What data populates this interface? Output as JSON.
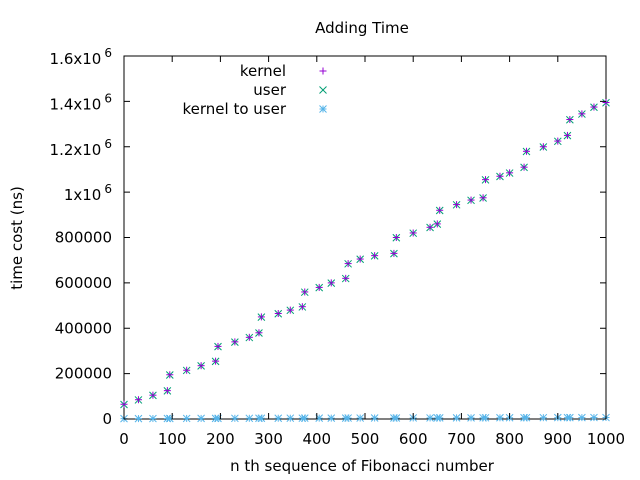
{
  "chart_data": {
    "type": "scatter",
    "title": "Adding Time",
    "xlabel": "n th sequence of Fibonacci number",
    "ylabel": "time cost (ns)",
    "xlim": [
      0,
      1000
    ],
    "ylim": [
      0,
      1600000
    ],
    "grid": false,
    "legend_position": "top-left",
    "x_ticks": [
      {
        "value": 0,
        "label": "0"
      },
      {
        "value": 100,
        "label": "100"
      },
      {
        "value": 200,
        "label": "200"
      },
      {
        "value": 300,
        "label": "300"
      },
      {
        "value": 400,
        "label": "400"
      },
      {
        "value": 500,
        "label": "500"
      },
      {
        "value": 600,
        "label": "600"
      },
      {
        "value": 700,
        "label": "700"
      },
      {
        "value": 800,
        "label": "800"
      },
      {
        "value": 900,
        "label": "900"
      },
      {
        "value": 1000,
        "label": "1000"
      }
    ],
    "y_ticks": [
      {
        "value": 0,
        "label": "0"
      },
      {
        "value": 200000,
        "label": "200000"
      },
      {
        "value": 400000,
        "label": "400000"
      },
      {
        "value": 600000,
        "label": "600000"
      },
      {
        "value": 800000,
        "label": "800000"
      },
      {
        "value": 1000000,
        "label": "1x10",
        "exp": "6"
      },
      {
        "value": 1200000,
        "label": "1.2x10",
        "exp": "6"
      },
      {
        "value": 1400000,
        "label": "1.4x10",
        "exp": "6"
      },
      {
        "value": 1600000,
        "label": "1.6x10",
        "exp": "6"
      }
    ],
    "x": [
      0,
      30,
      60,
      90,
      95,
      130,
      160,
      190,
      195,
      230,
      260,
      280,
      285,
      320,
      345,
      370,
      375,
      405,
      430,
      460,
      465,
      490,
      520,
      560,
      565,
      600,
      635,
      650,
      655,
      690,
      720,
      745,
      750,
      780,
      800,
      830,
      835,
      870,
      900,
      920,
      925,
      950,
      975,
      1000
    ],
    "series": [
      {
        "name": "kernel",
        "marker": "plus",
        "color": "#9400d3",
        "values": [
          65000,
          85000,
          105000,
          125000,
          195000,
          215000,
          235000,
          255000,
          320000,
          340000,
          360000,
          380000,
          450000,
          465000,
          480000,
          495000,
          560000,
          580000,
          600000,
          620000,
          685000,
          705000,
          720000,
          730000,
          800000,
          820000,
          845000,
          860000,
          920000,
          945000,
          965000,
          975000,
          1055000,
          1070000,
          1085000,
          1110000,
          1180000,
          1200000,
          1225000,
          1250000,
          1320000,
          1345000,
          1375000,
          1395000
        ]
      },
      {
        "name": "user",
        "marker": "cross",
        "color": "#009e73",
        "values": [
          64000,
          84000,
          104000,
          124000,
          194000,
          214000,
          234000,
          254000,
          319000,
          339000,
          359000,
          379000,
          449000,
          464000,
          479000,
          494000,
          559000,
          579000,
          599000,
          619000,
          684000,
          704000,
          719000,
          729000,
          799000,
          819000,
          844000,
          859000,
          919000,
          944000,
          964000,
          974000,
          1054000,
          1069000,
          1084000,
          1109000,
          1179000,
          1199000,
          1224000,
          1249000,
          1319000,
          1344000,
          1374000,
          1394000
        ]
      },
      {
        "name": "kernel to user",
        "marker": "star",
        "color": "#56b4e9",
        "values": [
          1500,
          1800,
          2000,
          2200,
          2300,
          2500,
          2600,
          2800,
          2900,
          3000,
          3100,
          3200,
          3300,
          3400,
          3500,
          3600,
          3700,
          3800,
          3900,
          4000,
          4100,
          4200,
          4300,
          4400,
          4500,
          4600,
          4700,
          4800,
          4900,
          5000,
          5100,
          5200,
          5300,
          5400,
          5500,
          5600,
          5700,
          5800,
          5900,
          6000,
          6100,
          6200,
          6300,
          6400
        ]
      }
    ]
  }
}
